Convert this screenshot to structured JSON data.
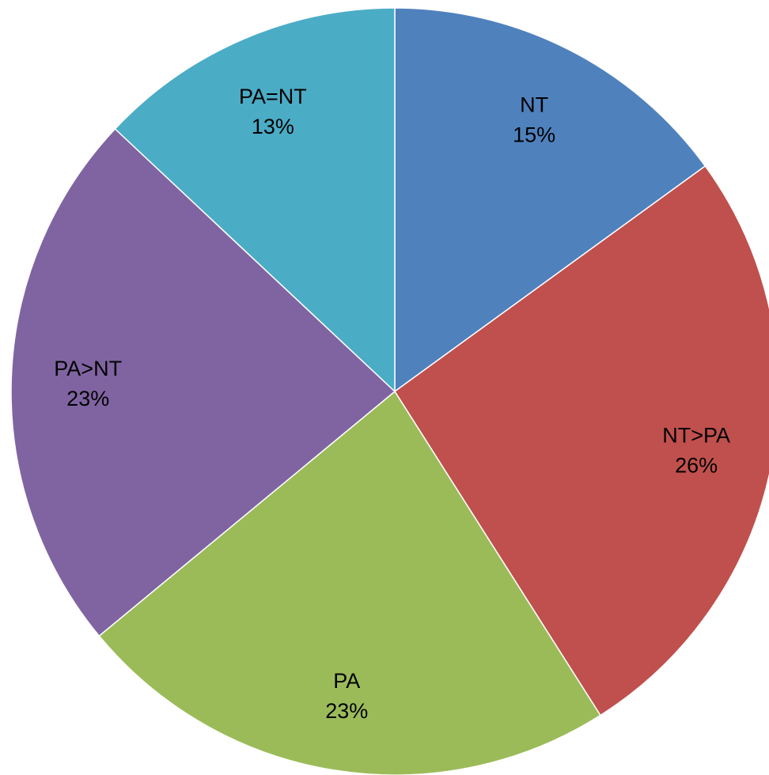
{
  "chart_data": {
    "type": "pie",
    "start_angle_deg": 0,
    "direction": "clockwise",
    "slices": [
      {
        "label": "NT",
        "value": 15,
        "value_label": "15%",
        "color": "#4F81BD"
      },
      {
        "label": "NT>PA",
        "value": 26,
        "value_label": "26%",
        "color": "#C0504D"
      },
      {
        "label": "PA",
        "value": 23,
        "value_label": "23%",
        "color": "#9BBB59"
      },
      {
        "label": "PA>NT",
        "value": 23,
        "value_label": "23%",
        "color": "#8064A2"
      },
      {
        "label": "PA=NT",
        "value": 13,
        "value_label": "13%",
        "color": "#4BACC6"
      }
    ],
    "slice_border_color": "#FFFFFF",
    "legend": "none"
  }
}
